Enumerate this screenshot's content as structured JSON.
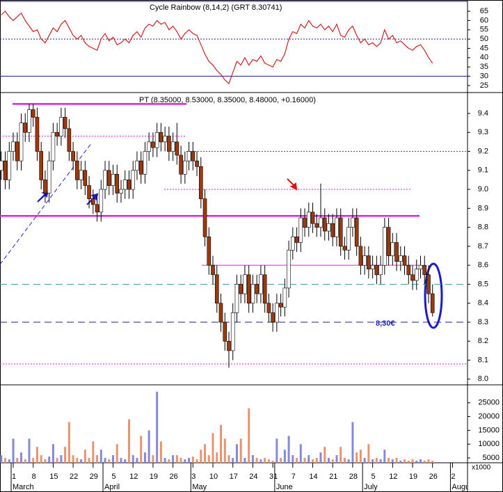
{
  "chart_data": [
    {
      "type": "line",
      "title": "Cycle Rainbow (8,14,2) (GRT 8.30741)",
      "color": "#d02020",
      "ylim": [
        21.2,
        70.3
      ],
      "yticks": [
        25,
        30,
        35,
        40,
        45,
        50,
        55,
        60,
        65
      ],
      "levels": [
        {
          "value": 50,
          "color": "#2020a0",
          "style": "dotted"
        },
        {
          "value": 30,
          "color": "#2020a0",
          "style": "solid"
        }
      ],
      "values": [
        63,
        65,
        62,
        60,
        62,
        64,
        60,
        57,
        54,
        55,
        50,
        48,
        52,
        56,
        54,
        58,
        60,
        56,
        52,
        50,
        52,
        48,
        46,
        45,
        44,
        50,
        53,
        49,
        51,
        47,
        48,
        50,
        48,
        52,
        54,
        51,
        56,
        58,
        57,
        60,
        58,
        59,
        55,
        57,
        54,
        50,
        53,
        55,
        53,
        52,
        47,
        42,
        38,
        36,
        33,
        31,
        28,
        26,
        32,
        38,
        36,
        40,
        36,
        39,
        38,
        41,
        37,
        36,
        35,
        39,
        38,
        42,
        50,
        54,
        53,
        58,
        56,
        60,
        57,
        56,
        58,
        55,
        57,
        54,
        58,
        52,
        51,
        55,
        57,
        52,
        48,
        50,
        47,
        48,
        46,
        48,
        55,
        50,
        52,
        48,
        49,
        47,
        45,
        44,
        46,
        47,
        44,
        40,
        37,
        null,
        null,
        null,
        null,
        null
      ]
    },
    {
      "type": "candlestick",
      "label": "PT (8.35000, 8.53000, 8.35000, 8.48000, +0.16000)",
      "annotation": "8,30€",
      "up_color": "#ffffff",
      "down_color": "#a0380c",
      "ylim": [
        7.97,
        9.51
      ],
      "yticks": [
        {
          "value": 8,
          "label": "8.0"
        },
        8.1,
        8.2,
        8.3,
        8.4,
        8.5,
        8.6,
        8.7,
        8.8,
        8.9,
        {
          "value": 9,
          "label": "9.0"
        },
        9.1,
        9.2,
        9.3,
        9.4
      ],
      "levels": [
        {
          "value": 9.45,
          "color": "#e020e0",
          "style": "solid"
        },
        {
          "value": 9.28,
          "color": "#e020e0",
          "style": "dotted"
        },
        {
          "value": 9.2,
          "color": "#4040c0",
          "style": "dotted"
        },
        {
          "value": 9.0,
          "color": "#e020e0",
          "style": "dotted"
        },
        {
          "value": 8.86,
          "color": "#e020e0",
          "style": "solid"
        },
        {
          "value": 8.6,
          "color": "#e020e0",
          "style": "solid"
        },
        {
          "value": 8.5,
          "color": "#40a0a0",
          "style": "dashed"
        },
        {
          "value": 8.3,
          "color": "#202080",
          "style": "dashed"
        },
        {
          "value": 8.08,
          "color": "#e020e0",
          "style": "dotted"
        }
      ],
      "categories": [
        null,
        null,
        null,
        "1",
        null,
        null,
        null,
        null,
        "8",
        null,
        null,
        null,
        null,
        "15",
        null,
        null,
        null,
        null,
        "22",
        null,
        null,
        null,
        null,
        "29",
        null,
        null,
        null,
        null,
        "5",
        null,
        null,
        null,
        null,
        "12",
        null,
        null,
        null,
        null,
        "19",
        null,
        null,
        null,
        null,
        "26",
        null,
        null,
        null,
        null,
        "3",
        null,
        null,
        null,
        null,
        "10",
        null,
        null,
        null,
        null,
        "17",
        null,
        null,
        null,
        null,
        "24",
        null,
        null,
        null,
        null,
        "31",
        null,
        null,
        null,
        null,
        "7",
        null,
        null,
        null,
        null,
        "14",
        null,
        null,
        null,
        null,
        "21",
        null,
        null,
        null,
        null,
        "28",
        null,
        null,
        null,
        null,
        "5",
        null,
        null,
        null,
        null,
        "12",
        null,
        null,
        null,
        null,
        "19",
        null,
        null,
        null,
        null,
        "26",
        null,
        null,
        null,
        null,
        "2"
      ],
      "months": [
        null,
        null,
        null,
        "March",
        null,
        null,
        null,
        null,
        null,
        null,
        null,
        null,
        null,
        null,
        null,
        null,
        null,
        null,
        null,
        null,
        null,
        null,
        null,
        null,
        null,
        null,
        "April",
        null,
        null,
        null,
        null,
        null,
        null,
        null,
        null,
        null,
        null,
        null,
        null,
        null,
        null,
        null,
        null,
        null,
        null,
        null,
        null,
        null,
        "May",
        null,
        null,
        null,
        null,
        null,
        null,
        null,
        null,
        null,
        null,
        null,
        null,
        null,
        null,
        null,
        null,
        null,
        null,
        null,
        null,
        "June",
        null,
        null,
        null,
        null,
        null,
        null,
        null,
        null,
        null,
        null,
        null,
        null,
        null,
        null,
        null,
        null,
        null,
        null,
        null,
        null,
        null,
        "July",
        null,
        null,
        null,
        null,
        null,
        null,
        null,
        null,
        null,
        null,
        null,
        null,
        null,
        null,
        null,
        null,
        null,
        null,
        null,
        null,
        null,
        "August"
      ],
      "open": [
        9.1,
        9.15,
        9.05,
        9.2,
        9.25,
        9.15,
        9.35,
        9.3,
        9.42,
        9.38,
        9.2,
        9.05,
        8.98,
        9.15,
        9.3,
        9.28,
        9.38,
        9.32,
        9.2,
        9.15,
        9.05,
        9.1,
        9.02,
        8.95,
        8.92,
        8.88,
        9.0,
        9.1,
        9.02,
        9.08,
        8.98,
        9.0,
        9.05,
        9.0,
        9.1,
        9.15,
        9.08,
        9.2,
        9.25,
        9.22,
        9.3,
        9.25,
        9.28,
        9.2,
        9.25,
        9.18,
        9.08,
        9.15,
        9.2,
        9.15,
        9.12,
        8.95,
        8.75,
        8.6,
        8.55,
        8.4,
        8.3,
        8.2,
        8.15,
        8.35,
        8.5,
        8.45,
        8.55,
        8.4,
        8.5,
        8.45,
        8.55,
        8.4,
        8.35,
        8.3,
        8.4,
        8.38,
        8.48,
        8.68,
        8.75,
        8.72,
        8.85,
        8.8,
        8.88,
        8.82,
        8.8,
        8.85,
        8.78,
        8.82,
        8.75,
        8.85,
        8.7,
        8.68,
        8.8,
        8.85,
        8.7,
        8.6,
        8.65,
        8.58,
        8.6,
        8.55,
        8.6,
        8.8,
        8.65,
        8.72,
        8.62,
        8.65,
        8.6,
        8.55,
        8.52,
        8.58,
        8.6,
        8.55,
        8.45,
        null,
        null,
        null,
        null,
        null
      ],
      "high": [
        9.2,
        9.2,
        9.25,
        9.3,
        9.3,
        9.4,
        9.4,
        9.45,
        9.45,
        9.43,
        9.25,
        9.1,
        9.2,
        9.35,
        9.35,
        9.43,
        9.43,
        9.37,
        9.25,
        9.2,
        9.15,
        9.15,
        9.07,
        9.0,
        8.97,
        9.05,
        9.15,
        9.15,
        9.13,
        9.13,
        9.05,
        9.1,
        9.1,
        9.15,
        9.2,
        9.2,
        9.25,
        9.3,
        9.3,
        9.35,
        9.35,
        9.33,
        9.33,
        9.3,
        9.35,
        9.23,
        9.2,
        9.25,
        9.25,
        9.2,
        9.17,
        9.0,
        8.8,
        8.65,
        8.6,
        8.45,
        8.35,
        8.25,
        8.4,
        8.55,
        8.55,
        8.6,
        8.6,
        8.55,
        8.55,
        8.6,
        8.6,
        8.45,
        8.4,
        8.45,
        8.45,
        8.53,
        8.73,
        8.8,
        8.8,
        8.9,
        8.9,
        8.93,
        8.93,
        8.87,
        9.03,
        8.9,
        8.87,
        8.87,
        8.9,
        8.9,
        8.75,
        8.85,
        8.9,
        8.9,
        8.75,
        8.7,
        8.7,
        8.65,
        8.65,
        8.65,
        8.85,
        8.85,
        8.77,
        8.77,
        8.7,
        8.7,
        8.65,
        8.6,
        8.63,
        8.65,
        8.65,
        8.6,
        8.5,
        null,
        null,
        null,
        null,
        null
      ],
      "low": [
        9.05,
        9.0,
        9.0,
        9.15,
        9.1,
        9.1,
        9.25,
        9.25,
        9.33,
        9.15,
        9.0,
        8.93,
        8.93,
        9.1,
        9.23,
        9.23,
        9.27,
        9.15,
        9.1,
        9.0,
        9.0,
        8.97,
        8.9,
        8.87,
        8.83,
        8.83,
        8.95,
        8.97,
        8.97,
        8.93,
        8.93,
        8.95,
        8.95,
        8.95,
        9.05,
        9.03,
        9.03,
        9.15,
        9.17,
        9.17,
        9.2,
        9.2,
        9.15,
        9.15,
        9.13,
        9.03,
        9.03,
        9.1,
        9.1,
        9.07,
        8.9,
        8.7,
        8.55,
        8.5,
        8.35,
        8.25,
        8.15,
        8.06,
        8.1,
        8.3,
        8.4,
        8.4,
        8.35,
        8.35,
        8.4,
        8.4,
        8.35,
        8.3,
        8.25,
        8.25,
        8.33,
        8.33,
        8.43,
        8.63,
        8.67,
        8.67,
        8.75,
        8.75,
        8.77,
        8.75,
        8.75,
        8.73,
        8.73,
        8.7,
        8.7,
        8.65,
        8.63,
        8.63,
        8.75,
        8.65,
        8.55,
        8.55,
        8.53,
        8.53,
        8.5,
        8.5,
        8.55,
        8.6,
        8.6,
        8.57,
        8.57,
        8.55,
        8.5,
        8.47,
        8.47,
        8.53,
        8.5,
        8.4,
        8.33,
        null,
        null,
        null,
        null,
        null
      ],
      "close": [
        9.15,
        9.05,
        9.2,
        9.25,
        9.15,
        9.35,
        9.3,
        9.42,
        9.38,
        9.2,
        9.05,
        8.98,
        9.15,
        9.3,
        9.28,
        9.38,
        9.32,
        9.2,
        9.15,
        9.05,
        9.1,
        9.02,
        8.95,
        8.92,
        8.88,
        9.0,
        9.1,
        9.02,
        9.08,
        8.98,
        9.0,
        9.05,
        9.0,
        9.1,
        9.15,
        9.08,
        9.2,
        9.25,
        9.22,
        9.3,
        9.25,
        9.28,
        9.2,
        9.25,
        9.18,
        9.08,
        9.15,
        9.2,
        9.15,
        9.12,
        8.95,
        8.75,
        8.6,
        8.55,
        8.4,
        8.3,
        8.2,
        8.15,
        8.35,
        8.5,
        8.45,
        8.55,
        8.4,
        8.5,
        8.45,
        8.55,
        8.4,
        8.35,
        8.3,
        8.4,
        8.38,
        8.48,
        8.68,
        8.75,
        8.72,
        8.85,
        8.8,
        8.88,
        8.82,
        8.8,
        8.85,
        8.78,
        8.82,
        8.75,
        8.85,
        8.7,
        8.68,
        8.8,
        8.85,
        8.7,
        8.6,
        8.65,
        8.58,
        8.6,
        8.55,
        8.6,
        8.8,
        8.65,
        8.72,
        8.62,
        8.65,
        8.6,
        8.55,
        8.52,
        8.58,
        8.6,
        8.55,
        8.45,
        8.35,
        null,
        null,
        null,
        null,
        null
      ]
    },
    {
      "type": "bar",
      "unit_label": "x1000",
      "up_color": "#8888d8",
      "down_color": "#e89470",
      "ylim": [
        3250,
        31500
      ],
      "yticks": [
        5000,
        10000,
        15000,
        20000,
        25000
      ],
      "values": [
        6000,
        5000,
        4500,
        12000,
        5000,
        7000,
        4500,
        12000,
        5000,
        9000,
        6000,
        4500,
        5500,
        10000,
        5000,
        6000,
        9000,
        18000,
        6000,
        5000,
        4500,
        8000,
        5000,
        11000,
        6000,
        8000,
        5000,
        4500,
        6000,
        10000,
        5000,
        4500,
        19000,
        6000,
        5000,
        13000,
        7000,
        15000,
        6000,
        29000,
        11000,
        5000,
        4500,
        6000,
        6000,
        5000,
        4500,
        5000,
        5500,
        4500,
        8000,
        10000,
        6000,
        14000,
        7000,
        17000,
        12000,
        6000,
        5000,
        10000,
        12000,
        5000,
        23000,
        6000,
        5000,
        4500,
        5000,
        4500,
        4000,
        12000,
        5000,
        8000,
        13000,
        6000,
        5000,
        10000,
        5000,
        6000,
        4500,
        5000,
        7000,
        9000,
        5000,
        4500,
        6000,
        9000,
        5000,
        4500,
        18000,
        7000,
        8000,
        5000,
        10000,
        4500,
        5000,
        4500,
        8000,
        5000,
        4500,
        5000,
        4000,
        4500,
        4000,
        4500,
        4000,
        4500,
        4000,
        4500,
        4000,
        null,
        null,
        null,
        null,
        null
      ]
    }
  ]
}
